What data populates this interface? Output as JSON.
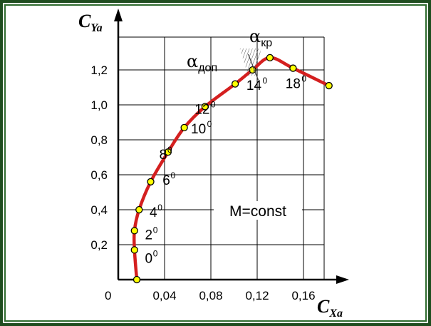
{
  "chart_data": {
    "type": "line",
    "x": [
      0.016,
      0.014,
      0.014,
      0.018,
      0.028,
      0.043,
      0.057,
      0.075,
      0.101,
      0.116,
      0.131,
      0.151,
      0.182
    ],
    "y": [
      0.0,
      0.17,
      0.28,
      0.4,
      0.56,
      0.73,
      0.87,
      0.99,
      1.12,
      1.2,
      1.27,
      1.21,
      1.11
    ],
    "point_labels": [
      "",
      "0",
      "2",
      "4",
      "6",
      "8",
      "10",
      "12",
      "",
      "14",
      "",
      "18",
      ""
    ],
    "degree_mark": "0",
    "xlabel": {
      "main": "C",
      "sub": "Xa"
    },
    "ylabel": {
      "main": "C",
      "sub": "Ya"
    },
    "xlim": [
      0,
      0.2
    ],
    "ylim": [
      0,
      1.4
    ],
    "xticks": [
      0.04,
      0.08,
      0.12,
      0.16
    ],
    "xtick_labels": [
      "0,04",
      "0,08",
      "0,12",
      "0,16"
    ],
    "yticks": [
      0.2,
      0.4,
      0.6,
      0.8,
      1.0,
      1.2
    ],
    "ytick_labels": [
      "0,2",
      "0,4",
      "0,6",
      "0,8",
      "1,0",
      "1,2"
    ],
    "origin_label": "0",
    "grid": true,
    "annotations": {
      "alpha_dop": {
        "symbol": "α",
        "sub": "доп"
      },
      "alpha_kr": {
        "symbol": "α",
        "sub": "кр"
      },
      "condition": "M=const"
    },
    "colors": {
      "curve": "#d41f1f",
      "marker_fill": "#ffff00",
      "grid": "#000000"
    }
  }
}
